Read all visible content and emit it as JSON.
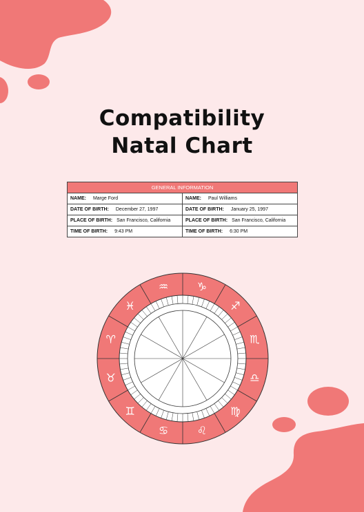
{
  "title": {
    "line1": "Compatibility",
    "line2": "Natal Chart"
  },
  "info": {
    "header": "GENERAL INFORMATION",
    "person1": {
      "name_label": "NAME:",
      "name": "Marge Ford",
      "dob_label": "DATE OF BIRTH:",
      "dob": "December 27, 1997",
      "pob_label": "PLACE OF BIRTH:",
      "pob": "San Francisco, California",
      "tob_label": "TIME OF BIRTH:",
      "tob": "9:43 PM"
    },
    "person2": {
      "name_label": "NAME:",
      "name": "Paul Williams",
      "dob_label": "DATE OF BIRTH:",
      "dob": "January 25, 1997",
      "pob_label": "PLACE OF BIRTH:",
      "pob": "San Francisco, California",
      "tob_label": "TIME OF BIRTH:",
      "tob": "6:30 PM"
    }
  },
  "wheel": {
    "signs": [
      "♑",
      "♐",
      "♏",
      "♎",
      "♍",
      "♌",
      "♋",
      "♊",
      "♉",
      "♈",
      "♓",
      "♒"
    ],
    "sign_icons": [
      "capricorn-icon",
      "sagittarius-icon",
      "scorpio-icon",
      "libra-icon",
      "virgo-icon",
      "leo-icon",
      "cancer-icon",
      "gemini-icon",
      "taurus-icon",
      "aries-icon",
      "pisces-icon",
      "aquarius-icon"
    ],
    "ring_color": "#f07877",
    "line_color": "#333333"
  },
  "colors": {
    "background": "#fde9ea",
    "accent": "#f07877"
  }
}
